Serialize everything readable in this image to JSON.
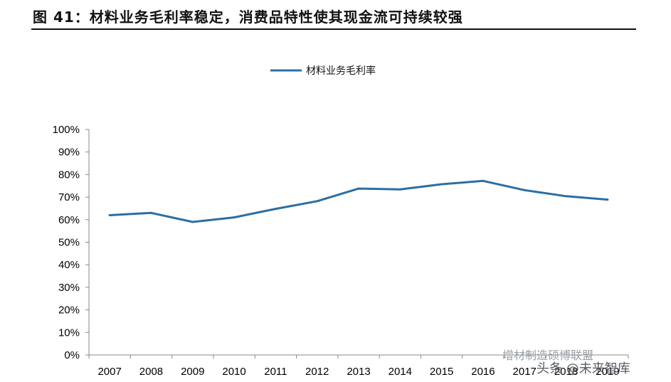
{
  "figure": {
    "title": "图 41：材料业务毛利率稳定，消费品特性使其现金流可持续较强"
  },
  "watermark": {
    "line1": "增材制造硕博联盟",
    "line2": "头条 @未来智库"
  },
  "colors": {
    "series": "#2a6fa5",
    "axis": "#888888",
    "text": "#111111"
  },
  "chart_data": {
    "type": "line",
    "title": "",
    "xlabel": "",
    "ylabel": "",
    "categories": [
      "2007",
      "2008",
      "2009",
      "2010",
      "2011",
      "2012",
      "2013",
      "2014",
      "2015",
      "2016",
      "2017",
      "2018",
      "2019"
    ],
    "series": [
      {
        "name": "材料业务毛利率",
        "values": [
          62,
          63,
          59,
          61,
          64.8,
          68.2,
          73.8,
          73.4,
          75.7,
          77.2,
          73.1,
          70.4,
          68.9
        ]
      }
    ],
    "ylim": [
      0,
      100
    ],
    "yticks": [
      "0%",
      "10%",
      "20%",
      "30%",
      "40%",
      "50%",
      "60%",
      "70%",
      "80%",
      "90%",
      "100%"
    ],
    "y_unit": "%",
    "grid": false,
    "legend_position": "top-center"
  }
}
